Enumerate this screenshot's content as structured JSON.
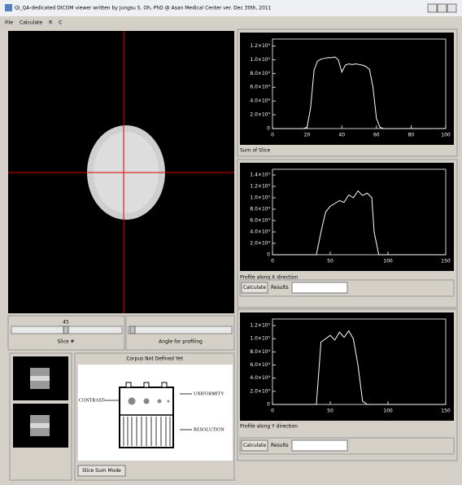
{
  "window": {
    "title": "QI_QA-dedicated DICOM viewer written by Jungsu S. Oh, PhD @ Asan Medical Center ver. Dec 30th, 2011",
    "menu": [
      "File",
      "Calculate",
      "R",
      "C"
    ]
  },
  "slice_slider": {
    "value": 45,
    "label": "Slice #"
  },
  "angle_slider": {
    "label": "Angle for profiling"
  },
  "phantom_panel": {
    "title": "Corpus Not Defined Yet",
    "labels": [
      "CONTRAST",
      "UNIFORMITY",
      "RESOLUTION"
    ],
    "button": "Slice Sum Mode"
  },
  "plots": [
    {
      "type": "line",
      "caption": "Sum of Slice",
      "color": "#ffffff",
      "xlim": [
        0,
        100
      ],
      "xticks": [
        0,
        20,
        40,
        60,
        80,
        100
      ],
      "ylim": [
        0,
        130000
      ],
      "yticks": [
        0,
        {
          "value": 20000,
          "label": "2.0×10⁴"
        },
        {
          "value": 40000,
          "label": "4.0×10⁴"
        },
        {
          "value": 60000,
          "label": "6.0×10⁴"
        },
        {
          "value": 80000,
          "label": "8.0×10⁴"
        },
        {
          "value": 100000,
          "label": "1.0×10⁵"
        },
        {
          "value": 120000,
          "label": "1.2×10⁵"
        }
      ],
      "x": [
        0,
        10,
        18,
        20,
        22,
        24,
        26,
        28,
        30,
        32,
        34,
        36,
        38,
        40,
        42,
        44,
        46,
        48,
        50,
        52,
        54,
        56,
        58,
        60,
        62,
        64,
        80,
        100
      ],
      "values": [
        0,
        0,
        0,
        2000,
        30000,
        85000,
        98000,
        101000,
        102000,
        103000,
        103000,
        104000,
        100000,
        82000,
        92000,
        94000,
        93000,
        94000,
        93000,
        92000,
        90000,
        86000,
        60000,
        15000,
        2000,
        0,
        0,
        0
      ]
    },
    {
      "type": "line",
      "caption": "Profile along X direction",
      "color": "#ffffff",
      "xlim": [
        0,
        150
      ],
      "xticks": [
        0,
        50,
        100,
        150
      ],
      "ylim": [
        0,
        150000
      ],
      "yticks": [
        0,
        {
          "value": 20000,
          "label": "2.0×10⁴"
        },
        {
          "value": 40000,
          "label": "4.0×10⁴"
        },
        {
          "value": 60000,
          "label": "6.0×10⁴"
        },
        {
          "value": 80000,
          "label": "8.0×10⁴"
        },
        {
          "value": 100000,
          "label": "1.0×10⁵"
        },
        {
          "value": 120000,
          "label": "1.2×10⁵"
        },
        {
          "value": 140000,
          "label": "1.4×10⁵"
        }
      ],
      "x": [
        0,
        20,
        38,
        42,
        46,
        50,
        54,
        58,
        62,
        66,
        70,
        74,
        78,
        82,
        86,
        88,
        92,
        110,
        130,
        150
      ],
      "values": [
        0,
        0,
        0,
        40000,
        75000,
        85000,
        90000,
        95000,
        92000,
        105000,
        100000,
        112000,
        104000,
        108000,
        100000,
        40000,
        0,
        0,
        0,
        0
      ]
    },
    {
      "type": "line",
      "caption": "Profile along Y direction",
      "color": "#ffffff",
      "xlim": [
        0,
        150
      ],
      "xticks": [
        0,
        50,
        100,
        150
      ],
      "ylim": [
        0,
        130000
      ],
      "yticks": [
        0,
        {
          "value": 20000,
          "label": "2.0×10⁴"
        },
        {
          "value": 40000,
          "label": "4.0×10⁴"
        },
        {
          "value": 60000,
          "label": "6.0×10⁴"
        },
        {
          "value": 80000,
          "label": "8.0×10⁴"
        },
        {
          "value": 100000,
          "label": "1.0×10⁵"
        },
        {
          "value": 120000,
          "label": "1.2×10⁵"
        }
      ],
      "x": [
        0,
        20,
        38,
        42,
        46,
        50,
        54,
        58,
        62,
        66,
        70,
        74,
        78,
        82,
        100,
        120,
        150
      ],
      "values": [
        0,
        0,
        0,
        95000,
        100000,
        105000,
        98000,
        110000,
        102000,
        112000,
        100000,
        60000,
        5000,
        0,
        0,
        0,
        0
      ]
    }
  ],
  "calc_rows": [
    {
      "button": "Calculate",
      "result_label": "Results"
    },
    {
      "button": "Calculate",
      "result_label": "Results"
    }
  ]
}
